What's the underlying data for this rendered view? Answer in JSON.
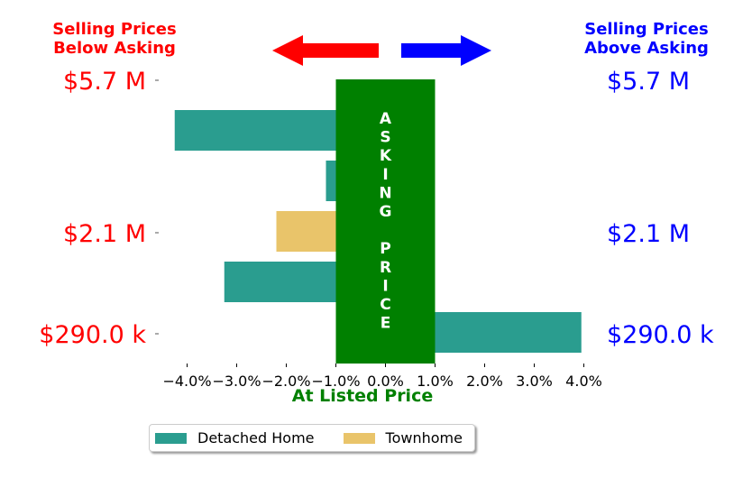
{
  "header_left": {
    "line1": "Selling Prices",
    "line2": "Below Asking",
    "color": "#ff0000"
  },
  "header_right": {
    "line1": "Selling Prices",
    "line2": "Above Asking",
    "color": "#0000ff"
  },
  "colors": {
    "below": "#ff0000",
    "above": "#0000ff",
    "asking_band": "#008000",
    "detached": "#2a9d8f",
    "townhome": "#e9c46a"
  },
  "chart_data": {
    "type": "bar",
    "orientation": "horizontal",
    "xlabel": "At Listed Price",
    "xlim": [
      -0.045,
      0.04
    ],
    "x_ticks": [
      -0.04,
      -0.03,
      -0.02,
      -0.01,
      0.0,
      0.01,
      0.02,
      0.03,
      0.04
    ],
    "x_tick_labels": [
      "−4.0%",
      "−3.0%",
      "−2.0%",
      "−1.0%",
      "0.0%",
      "1.0%",
      "2.0%",
      "3.0%",
      "4.0%"
    ],
    "y_tick_labels": [
      "$5.7 M",
      "$2.1 M",
      "$290.0 k"
    ],
    "asking_band": {
      "from": -0.01,
      "to": 0.01,
      "label": "ASKING PRICE"
    },
    "bars": [
      {
        "category": "Detached Home",
        "value": -0.0425
      },
      {
        "category": "Detached Home",
        "value": -0.012
      },
      {
        "category": "Townhome",
        "value": -0.022
      },
      {
        "category": "Detached Home",
        "value": -0.0325
      },
      {
        "category": "Detached Home",
        "value": 0.0395
      }
    ],
    "legend": [
      "Detached Home",
      "Townhome"
    ],
    "legend_placement": "bottom"
  }
}
